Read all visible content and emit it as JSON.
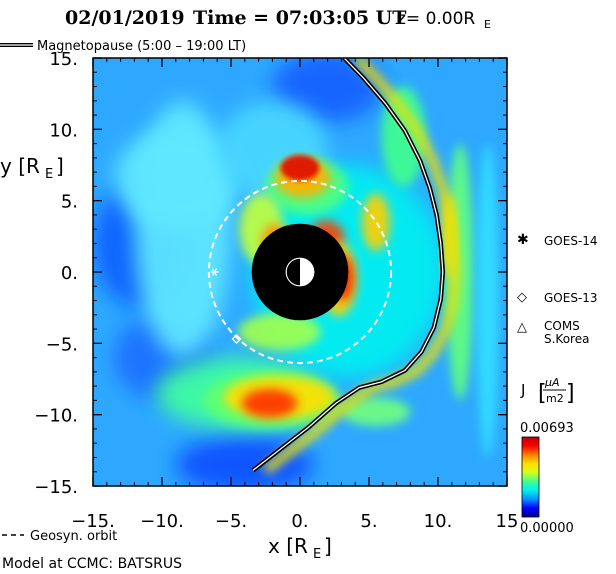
{
  "chart_data": {
    "type": "heatmap",
    "title": {
      "date": "02/01/2019",
      "time_label": "Time = 07:03:05 UT",
      "z_label": "z= 0.00R",
      "z_sub": "E"
    },
    "xlabel": {
      "main": "x [R",
      "sub": "E",
      "end": "]"
    },
    "ylabel": {
      "main": "y [R",
      "sub": "E",
      "end": "]"
    },
    "xlim": [
      -15,
      15
    ],
    "ylim": [
      -15,
      15
    ],
    "x_ticks": [
      {
        "v": -15,
        "label": "−15."
      },
      {
        "v": -10,
        "label": "−10."
      },
      {
        "v": -5,
        "label": "−5."
      },
      {
        "v": 0,
        "label": "0."
      },
      {
        "v": 5,
        "label": "5."
      },
      {
        "v": 10,
        "label": "10."
      },
      {
        "v": 15,
        "label": "15"
      }
    ],
    "y_ticks": [
      {
        "v": 15,
        "label": "15."
      },
      {
        "v": 10,
        "label": "10."
      },
      {
        "v": 5,
        "label": "5."
      },
      {
        "v": 0,
        "label": "0."
      },
      {
        "v": -5,
        "label": "−5."
      },
      {
        "v": -10,
        "label": "−10."
      },
      {
        "v": -15,
        "label": "−15."
      }
    ],
    "colorbar": {
      "label_main": "J",
      "label_unit_num": "μA",
      "label_unit_den": "m2",
      "max_label": "0.00693",
      "min_label": "0.00000",
      "max": 0.00693,
      "min": 0.0,
      "colors": [
        "#00008a",
        "#0000ff",
        "#0090ff",
        "#00f0f0",
        "#40ff90",
        "#d0ff20",
        "#ffe000",
        "#ff8000",
        "#ff0000",
        "#c00000"
      ]
    },
    "magnetopause": {
      "legend": "Magnetopause (5:00 – 19:00 LT)",
      "points": [
        [
          3.2,
          15.0
        ],
        [
          4.6,
          13.6
        ],
        [
          6.2,
          11.8
        ],
        [
          7.6,
          9.9
        ],
        [
          8.7,
          7.8
        ],
        [
          9.4,
          5.9
        ],
        [
          9.9,
          4.0
        ],
        [
          10.2,
          2.0
        ],
        [
          10.35,
          0.0
        ],
        [
          10.2,
          -1.9
        ],
        [
          9.7,
          -3.9
        ],
        [
          8.8,
          -5.6
        ],
        [
          7.6,
          -6.9
        ],
        [
          5.9,
          -7.7
        ],
        [
          4.3,
          -8.1
        ],
        [
          2.6,
          -9.2
        ],
        [
          0.6,
          -10.9
        ],
        [
          -1.4,
          -12.4
        ],
        [
          -3.4,
          -13.9
        ]
      ]
    },
    "geosync": {
      "legend": "Geosyn. orbit",
      "radius": 6.6
    },
    "earth": {
      "radius": 1.0,
      "shadow_radius": 3.5
    },
    "satellites": [
      {
        "name": "GOES-14",
        "marker": "asterisk",
        "x": -6.2,
        "y": 0.0
      },
      {
        "name": "GOES-13",
        "marker": "diamond",
        "x": -4.6,
        "y": -4.7
      },
      {
        "name": "COMS S.Korea",
        "marker": "triangle",
        "x": null,
        "y": null
      }
    ],
    "legend_satellites": [
      {
        "name": "GOES-14",
        "symbol": "✱"
      },
      {
        "name": "GOES-13",
        "symbol": "◇"
      },
      {
        "name_line1": "COMS",
        "name_line2": "S.Korea",
        "symbol": "△"
      }
    ],
    "footer": "Model at CCMC: BATSRUS"
  }
}
